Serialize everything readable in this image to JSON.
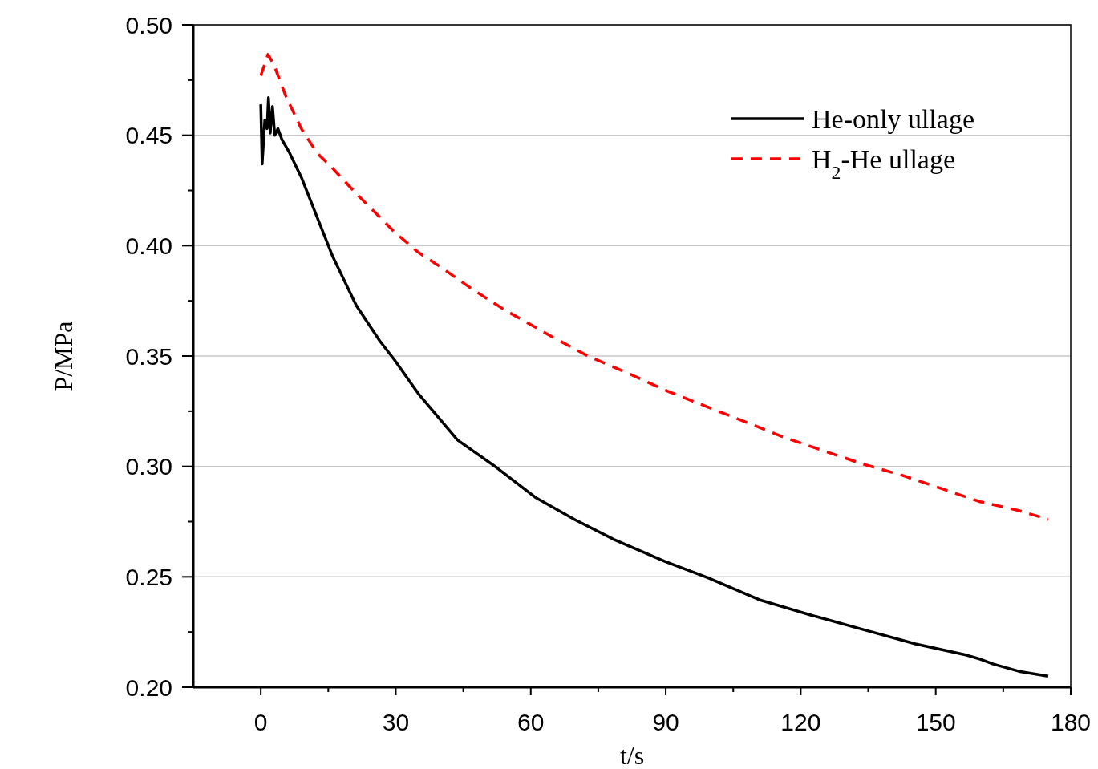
{
  "chart_data": {
    "type": "line",
    "xlabel": "t/s",
    "ylabel": "P/MPa",
    "xlim": [
      -15,
      180
    ],
    "xticks": [
      0,
      {
        "value": 15,
        "label": null
      },
      30,
      {
        "value": 45,
        "label": null
      },
      60,
      {
        "value": 75,
        "label": null
      },
      90,
      {
        "value": 105,
        "label": null
      },
      120,
      {
        "value": 135,
        "label": null
      },
      150,
      {
        "value": 165,
        "label": null
      },
      180
    ],
    "ylim": [
      0.2,
      0.5
    ],
    "yticks": [
      {
        "value": 0.2,
        "label": "0.20"
      },
      {
        "value": 0.225,
        "label": null
      },
      {
        "value": 0.25,
        "label": "0.25"
      },
      {
        "value": 0.275,
        "label": null
      },
      {
        "value": 0.3,
        "label": "0.30"
      },
      {
        "value": 0.325,
        "label": null
      },
      {
        "value": 0.35,
        "label": "0.35"
      },
      {
        "value": 0.375,
        "label": null
      },
      {
        "value": 0.4,
        "label": "0.40"
      },
      {
        "value": 0.425,
        "label": null
      },
      {
        "value": 0.45,
        "label": "0.45"
      },
      {
        "value": 0.475,
        "label": null
      },
      {
        "value": 0.5,
        "label": "0.50"
      }
    ],
    "grid": "y",
    "legend": "top right",
    "series": [
      {
        "name": "He-only ullage",
        "color": "#000000",
        "line_style": "solid",
        "x": [
          0,
          0.3,
          0.9,
          1.4,
          1.7,
          2.1,
          2.6,
          3.1,
          3.8,
          4.7,
          6.4,
          9,
          12.5,
          16,
          21.2,
          26.4,
          29.8,
          35,
          43.7,
          52.4,
          61,
          69.7,
          78.4,
          89.8,
          99.2,
          110.8,
          122.2,
          133.9,
          145.5,
          156.9,
          159.9,
          162.8,
          168.5,
          175
        ],
        "values": [
          0.464,
          0.437,
          0.457,
          0.453,
          0.467,
          0.451,
          0.463,
          0.45,
          0.453,
          0.448,
          0.442,
          0.431,
          0.413,
          0.395,
          0.373,
          0.357,
          0.348,
          0.333,
          0.312,
          0.2995,
          0.286,
          0.276,
          0.267,
          0.257,
          0.2497,
          0.2396,
          0.2327,
          0.2261,
          0.2196,
          0.2145,
          0.2127,
          0.2105,
          0.2072,
          0.205
        ]
      },
      {
        "name": "H$_{2}$-He ullage",
        "color": "#ff0000",
        "line_style": "dashed",
        "x": [
          0,
          1.6,
          2.9,
          5.5,
          9,
          12.5,
          16,
          21,
          26.4,
          29.8,
          35,
          40.2,
          47.2,
          54.1,
          64.5,
          72.7,
          81.8,
          90.5,
          99.2,
          107.9,
          116.5,
          125.2,
          133.9,
          142.5,
          151.2,
          159.9,
          168.5,
          175
        ],
        "values": [
          0.477,
          0.4866,
          0.482,
          0.468,
          0.453,
          0.442,
          0.435,
          0.424,
          0.413,
          0.406,
          0.397,
          0.39,
          0.38,
          0.371,
          0.359,
          0.35,
          0.342,
          0.334,
          0.327,
          0.32,
          0.313,
          0.307,
          0.301,
          0.296,
          0.29,
          0.284,
          0.28,
          0.276
        ]
      }
    ]
  }
}
